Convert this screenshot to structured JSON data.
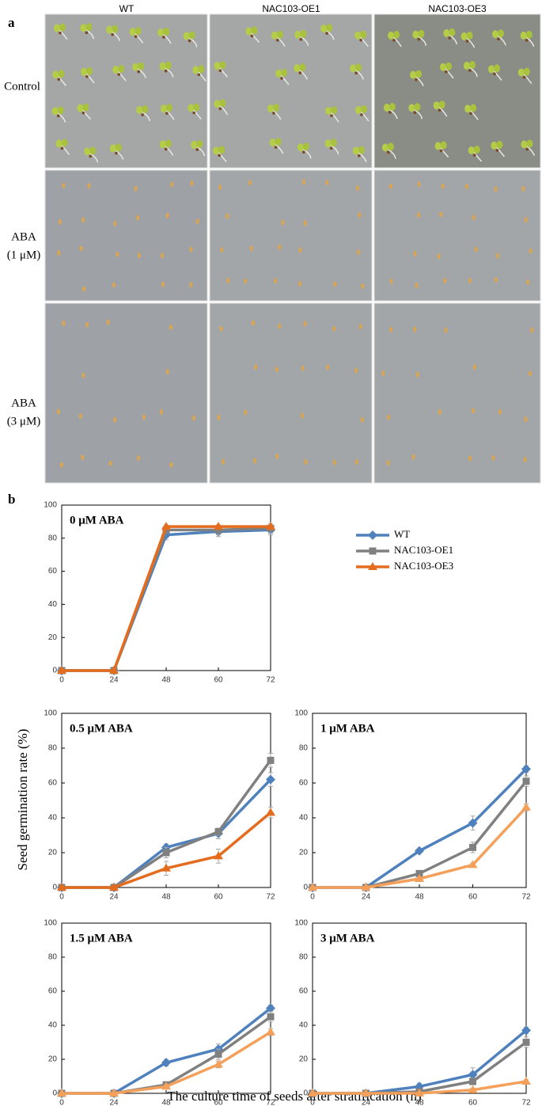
{
  "panel_a": {
    "label": "a",
    "columns": [
      "WT",
      "NAC103-OE1",
      "NAC103-OE3"
    ],
    "rows": [
      [
        "Control"
      ],
      [
        "ABA",
        "(1 μM)"
      ],
      [
        "ABA",
        "(3 μM)"
      ]
    ]
  },
  "panel_b_label": "b",
  "ylabel": "Seed germination rate (%)",
  "xlabel": "The culture time of seeds after stratification (h)",
  "chart_data": [
    {
      "type": "line",
      "title": "0 μM ABA",
      "categories": [
        "0",
        "24",
        "48",
        "60",
        "72"
      ],
      "ylim": [
        0,
        100
      ],
      "yticks": [
        0,
        20,
        40,
        60,
        80,
        100
      ],
      "legend": "right",
      "series": [
        {
          "name": "WT",
          "color": "#4f81bd",
          "marker": "diamond",
          "values": [
            0,
            0,
            82,
            84,
            85
          ],
          "errors": [
            0,
            0,
            3,
            3,
            3
          ]
        },
        {
          "name": "NAC103-OE1",
          "color": "#808080",
          "marker": "square",
          "values": [
            0,
            0,
            85,
            85,
            86
          ],
          "errors": [
            0,
            0,
            2,
            3,
            3
          ]
        },
        {
          "name": "NAC103-OE3",
          "color": "#e36c1e",
          "marker": "triangle",
          "values": [
            0,
            0,
            87,
            87,
            87
          ],
          "errors": [
            0,
            0,
            1,
            1,
            1
          ]
        }
      ]
    },
    {
      "type": "line",
      "title": "0.5 μM ABA",
      "categories": [
        "0",
        "24",
        "48",
        "60",
        "72"
      ],
      "ylim": [
        0,
        100
      ],
      "yticks": [
        0,
        20,
        40,
        60,
        80,
        100
      ],
      "series": [
        {
          "color": "#4f81bd",
          "marker": "diamond",
          "values": [
            0,
            0,
            23,
            31,
            62
          ],
          "errors": [
            0,
            0,
            2,
            3,
            4
          ]
        },
        {
          "color": "#808080",
          "marker": "square",
          "values": [
            0,
            0,
            20,
            32,
            73
          ],
          "errors": [
            0,
            0,
            3,
            2,
            4
          ]
        },
        {
          "color": "#e36c1e",
          "marker": "triangle",
          "values": [
            0,
            0,
            11,
            18,
            43
          ],
          "errors": [
            0,
            0,
            4,
            4,
            3
          ]
        }
      ]
    },
    {
      "type": "line",
      "title": "1 μM ABA",
      "categories": [
        "0",
        "24",
        "48",
        "60",
        "72"
      ],
      "ylim": [
        0,
        100
      ],
      "yticks": [
        0,
        20,
        40,
        60,
        80,
        100
      ],
      "series": [
        {
          "color": "#4f81bd",
          "marker": "diamond",
          "values": [
            0,
            0,
            21,
            37,
            68
          ],
          "errors": [
            0,
            0,
            1,
            4,
            2
          ]
        },
        {
          "color": "#808080",
          "marker": "square",
          "values": [
            0,
            0,
            8,
            23,
            61
          ],
          "errors": [
            0,
            0,
            1,
            3,
            3
          ]
        },
        {
          "color": "#f5a05a",
          "marker": "triangle",
          "values": [
            0,
            0,
            5,
            13,
            46
          ],
          "errors": [
            0,
            0,
            1,
            1,
            2
          ]
        }
      ]
    },
    {
      "type": "line",
      "title": "1.5 μM ABA",
      "categories": [
        "0",
        "24",
        "48",
        "60",
        "72"
      ],
      "ylim": [
        0,
        100
      ],
      "yticks": [
        0,
        20,
        40,
        60,
        80,
        100
      ],
      "series": [
        {
          "color": "#4f81bd",
          "marker": "diamond",
          "values": [
            0,
            0,
            18,
            26,
            50
          ],
          "errors": [
            0,
            0,
            2,
            3,
            2
          ]
        },
        {
          "color": "#808080",
          "marker": "square",
          "values": [
            0,
            0,
            5,
            23,
            45
          ],
          "errors": [
            0,
            0,
            1,
            3,
            3
          ]
        },
        {
          "color": "#f5a05a",
          "marker": "triangle",
          "values": [
            0,
            0,
            4,
            17,
            36
          ],
          "errors": [
            0,
            0,
            1,
            2,
            2
          ]
        }
      ]
    },
    {
      "type": "line",
      "title": "3 μM ABA",
      "categories": [
        "0",
        "24",
        "48",
        "60",
        "72"
      ],
      "ylim": [
        0,
        100
      ],
      "yticks": [
        0,
        20,
        40,
        60,
        80,
        100
      ],
      "series": [
        {
          "color": "#4f81bd",
          "marker": "diamond",
          "values": [
            0,
            0,
            4,
            11,
            37
          ],
          "errors": [
            0,
            0,
            2,
            4,
            2
          ]
        },
        {
          "color": "#808080",
          "marker": "square",
          "values": [
            0,
            0,
            1,
            7,
            30
          ],
          "errors": [
            0,
            0,
            1,
            2,
            3
          ]
        },
        {
          "color": "#f5a05a",
          "marker": "triangle",
          "values": [
            0,
            0,
            0,
            2,
            7
          ],
          "errors": [
            0,
            0,
            0,
            1,
            1
          ]
        }
      ]
    }
  ]
}
